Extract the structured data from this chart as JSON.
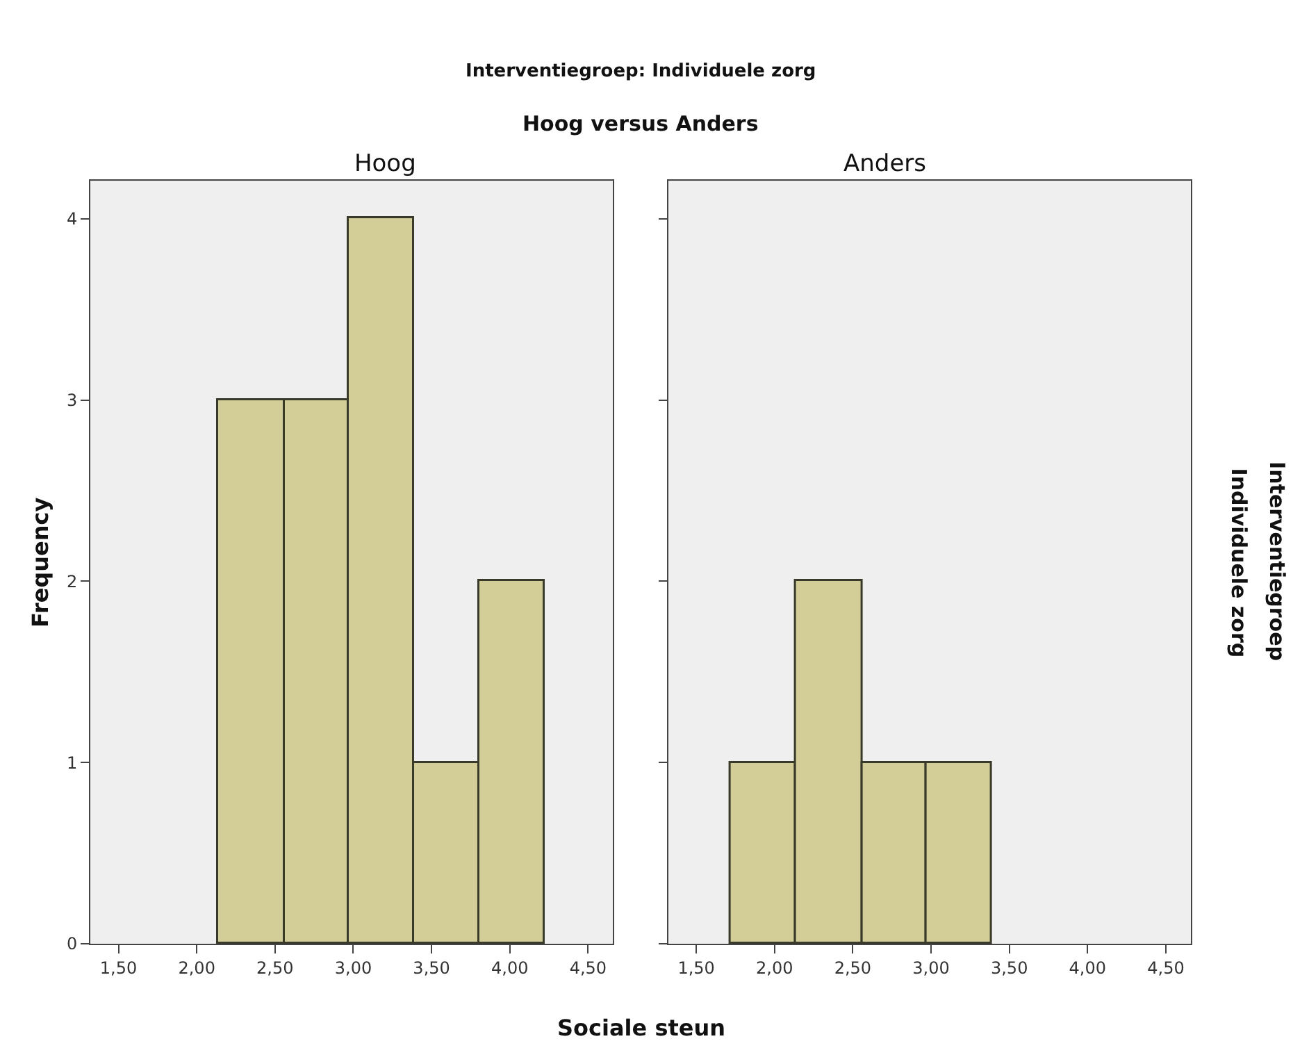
{
  "chart_data": [
    {
      "type": "histogram",
      "title": "Interventiegroep: Individuele zorg",
      "subtitle": "Hoog versus Anders",
      "xlabel": "Sociale steun",
      "ylabel": "Frequency",
      "annotations": [
        "Hoog"
      ],
      "bins": [
        2.14,
        2.56,
        2.97,
        3.39,
        3.81,
        4.22
      ],
      "values": [
        3,
        3,
        4,
        1,
        2
      ],
      "color": "#d3ce98",
      "xlim": [
        1.32,
        4.66
      ],
      "xticks": [
        {
          "value": 1.5,
          "label": "1,50"
        },
        {
          "value": 2,
          "label": "2,00"
        },
        {
          "value": 2.5,
          "label": "2,50"
        },
        {
          "value": 3,
          "label": "3,00"
        },
        {
          "value": 3.5,
          "label": "3,50"
        },
        {
          "value": 4,
          "label": "4,00"
        },
        {
          "value": 4.5,
          "label": "4,50"
        }
      ],
      "ylim": [
        0,
        4.21
      ],
      "yticks": [
        0,
        1,
        2,
        3,
        4
      ],
      "grid": false
    },
    {
      "type": "histogram",
      "annotations": [
        "Anders",
        "Interventiegroep",
        "Individuele zorg"
      ],
      "bins": [
        1.72,
        2.14,
        2.56,
        2.97,
        3.39
      ],
      "values": [
        1,
        2,
        1,
        1
      ],
      "color": "#d3ce98",
      "xlim": [
        1.32,
        4.66
      ],
      "xticks": [
        {
          "value": 1.5,
          "label": "1,50"
        },
        {
          "value": 2,
          "label": "2,00"
        },
        {
          "value": 2.5,
          "label": "2,50"
        },
        {
          "value": 3,
          "label": "3,00"
        },
        {
          "value": 3.5,
          "label": "3,50"
        },
        {
          "value": 4,
          "label": "4,00"
        },
        {
          "value": 4.5,
          "label": "4,50"
        }
      ],
      "ylim": [
        0,
        4.21
      ],
      "yticks": [
        0,
        1,
        2,
        3,
        4
      ],
      "tick_labels": "x",
      "grid": false
    }
  ]
}
